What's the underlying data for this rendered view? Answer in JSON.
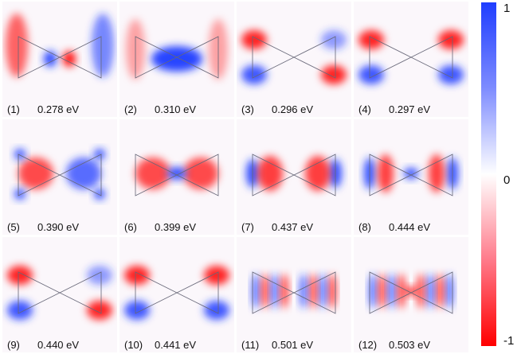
{
  "panels": [
    {
      "index": "(1)",
      "energy": "0.278 eV",
      "pattern": "dipole-center"
    },
    {
      "index": "(2)",
      "energy": "0.310 eV",
      "pattern": "blue-center"
    },
    {
      "index": "(3)",
      "energy": "0.296 eV",
      "pattern": "horizontal-split"
    },
    {
      "index": "(4)",
      "energy": "0.297 eV",
      "pattern": "horizontal-split-alt"
    },
    {
      "index": "(5)",
      "energy": "0.390 eV",
      "pattern": "red-lobes-blue-tips"
    },
    {
      "index": "(6)",
      "energy": "0.399 eV",
      "pattern": "red-lobes-blue-center"
    },
    {
      "index": "(7)",
      "energy": "0.437 eV",
      "pattern": "red-bands-blue-edges"
    },
    {
      "index": "(8)",
      "energy": "0.444 eV",
      "pattern": "multi-band"
    },
    {
      "index": "(9)",
      "energy": "0.440 eV",
      "pattern": "horizontal-split"
    },
    {
      "index": "(10)",
      "energy": "0.441 eV",
      "pattern": "horizontal-split-alt"
    },
    {
      "index": "(11)",
      "energy": "0.501 eV",
      "pattern": "fine-bands"
    },
    {
      "index": "(12)",
      "energy": "0.503 eV",
      "pattern": "fine-bands-center"
    }
  ],
  "colorbar": {
    "max_label": "1",
    "mid_label": "0",
    "min_label": "-1",
    "colors": {
      "max": "#1f3dff",
      "mid": "#ffffff",
      "min": "#ff0000"
    }
  }
}
